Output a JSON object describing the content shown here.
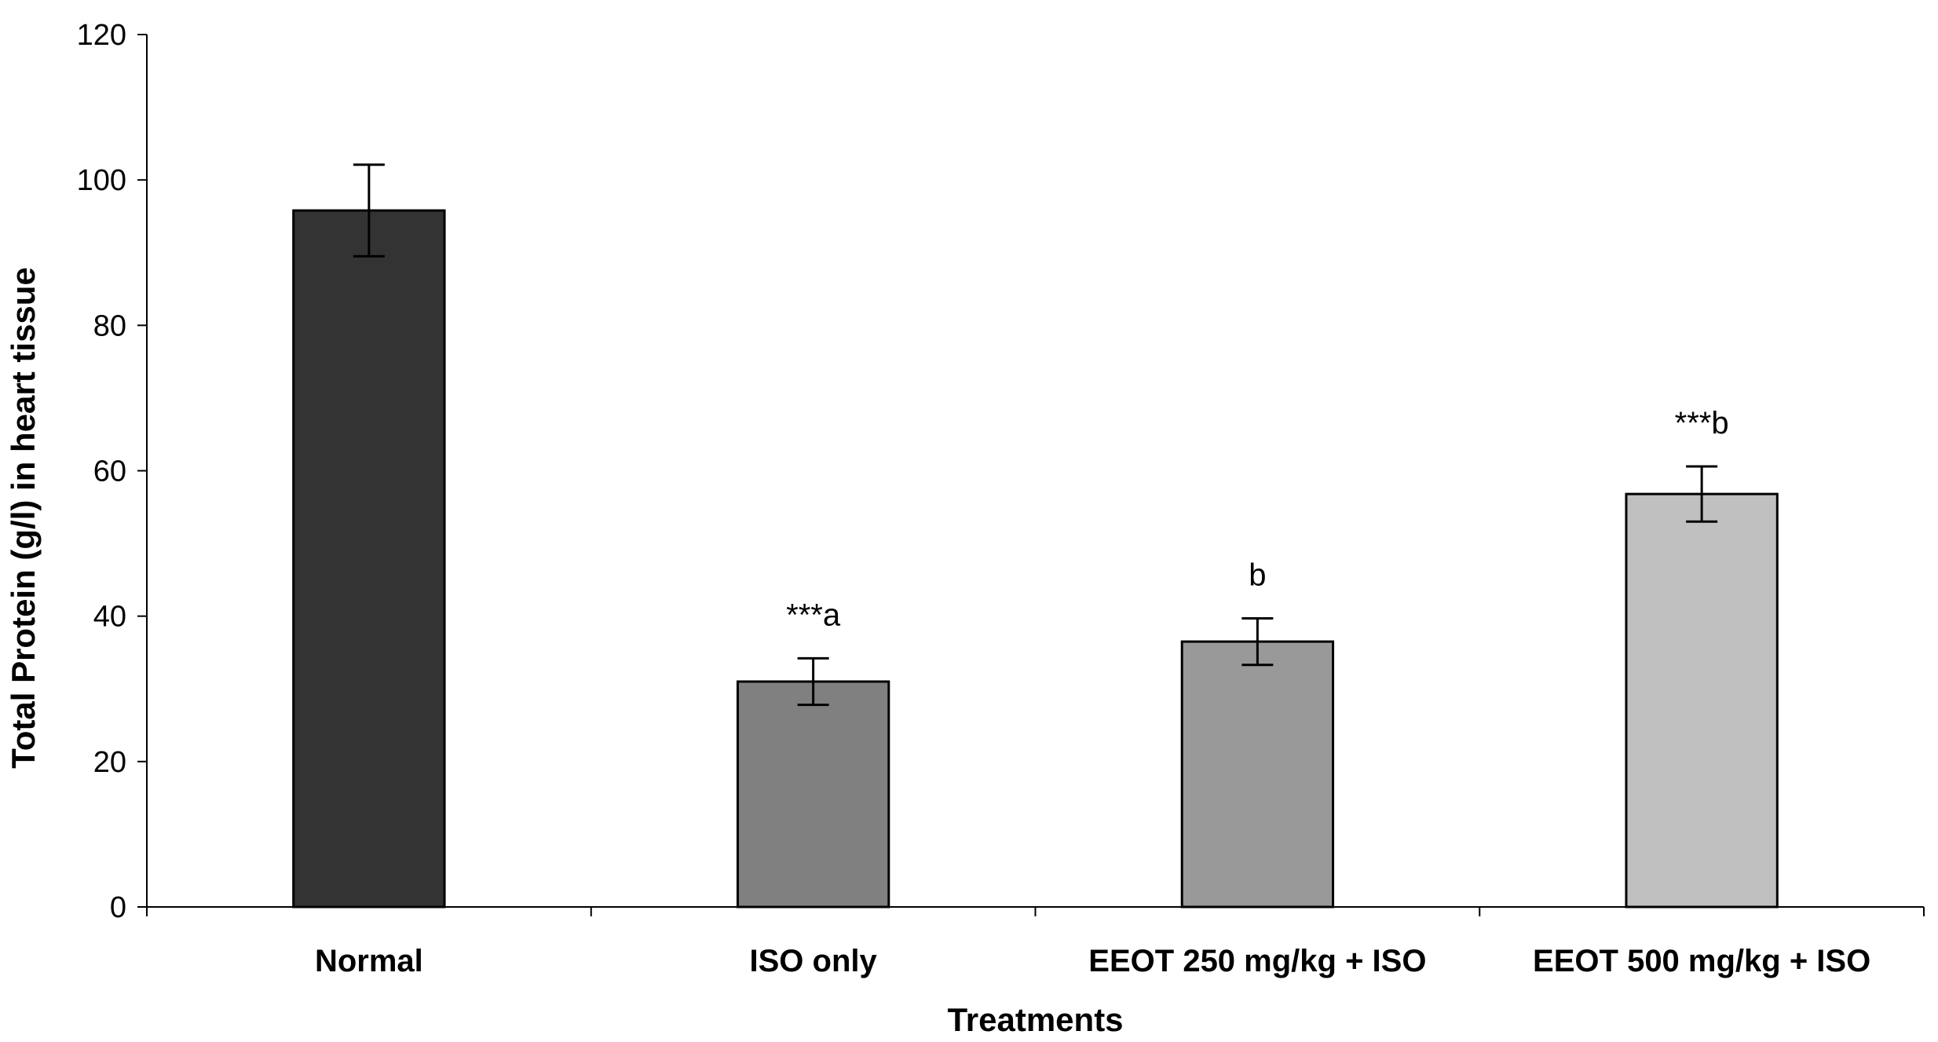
{
  "chart_data": {
    "type": "bar",
    "title": "",
    "xlabel": "Treatments",
    "ylabel": "Total Protein (g/l) in heart tissue",
    "ylim": [
      0,
      120
    ],
    "yticks": [
      0,
      20,
      40,
      60,
      80,
      100,
      120
    ],
    "grid": false,
    "categories": [
      "Normal",
      "ISO only",
      "EEOT 250 mg/kg + ISO",
      "EEOT 500 mg/kg + ISO"
    ],
    "values": [
      95.8,
      31.0,
      36.5,
      56.8
    ],
    "errors": [
      6.3,
      3.2,
      3.2,
      3.8
    ],
    "annotations": [
      "",
      "***a",
      "b",
      "***b"
    ],
    "colors": [
      "#333333",
      "#808080",
      "#999999",
      "#c0c0c0"
    ]
  }
}
